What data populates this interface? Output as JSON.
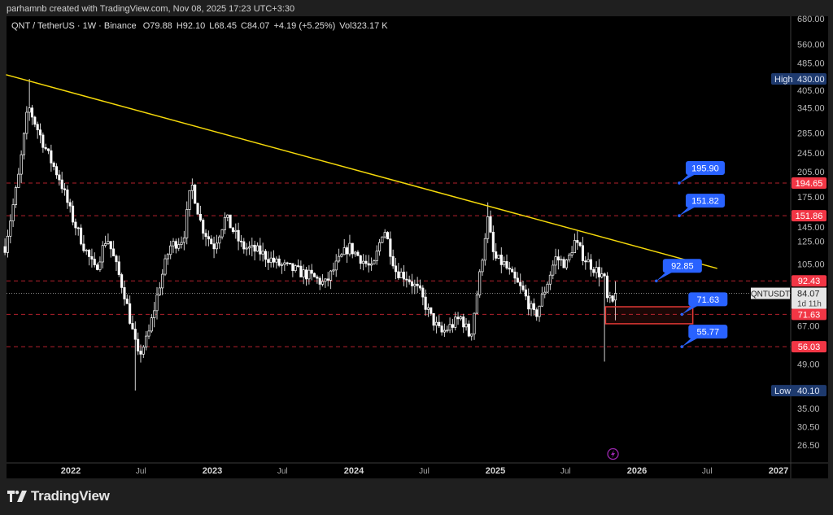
{
  "attribution": "parhamnb created with TradingView.com, Nov 08, 2025 17:23 UTC+3:30",
  "legend": {
    "symbol": "QNT / TetherUS · 1W · Binance",
    "open": "O79.88",
    "high": "H92.10",
    "low": "L68.45",
    "close": "C84.07",
    "change": "+4.19 (+5.25%)",
    "volume": "Vol323.17 K"
  },
  "footer": {
    "brand": "TradingView"
  },
  "colors": {
    "background": "#000000",
    "frame": "#1f1f1f",
    "candle": "#ffffff",
    "trendline": "#f5d90a",
    "level_line": "#b2202c",
    "level_tag": "#f23645",
    "callout": "#2962ff",
    "high_low_tag": "#1e3a6e",
    "zone_border": "#e53935",
    "event_icon": "#9c27b0"
  },
  "chart_data": {
    "type": "candlestick",
    "symbol": "QNTUSDT",
    "interval": "1W",
    "y_scale": "log",
    "grid": false,
    "price_ticks": [
      "680.00",
      "560.00",
      "485.00",
      "405.00",
      "345.00",
      "285.00",
      "245.00",
      "205.00",
      "175.00",
      "145.00",
      "125.00",
      "105.00",
      "67.00",
      "49.00",
      "35.00",
      "30.50",
      "26.50"
    ],
    "x_ticks": [
      {
        "label": "2022",
        "date": "2022-01-01"
      },
      {
        "label": "Jul",
        "date": "2022-07-01"
      },
      {
        "label": "2023",
        "date": "2023-01-01"
      },
      {
        "label": "Jul",
        "date": "2023-07-01"
      },
      {
        "label": "2024",
        "date": "2024-01-01"
      },
      {
        "label": "Jul",
        "date": "2024-07-01"
      },
      {
        "label": "2025",
        "date": "2025-01-01"
      },
      {
        "label": "Jul",
        "date": "2025-07-01"
      },
      {
        "label": "2026",
        "date": "2026-01-01"
      },
      {
        "label": "Jul",
        "date": "2026-07-01"
      },
      {
        "label": "2027",
        "date": "2027-01-01"
      }
    ],
    "first_candle": "2021-07-12",
    "price_path": [
      [
        "2021-07-12",
        120
      ],
      [
        "2021-08-15",
        200
      ],
      [
        "2021-09-10",
        350
      ],
      [
        "2021-10-01",
        300
      ],
      [
        "2021-11-01",
        240
      ],
      [
        "2021-12-01",
        200
      ],
      [
        "2022-01-01",
        150
      ],
      [
        "2022-02-01",
        120
      ],
      [
        "2022-03-01",
        100
      ],
      [
        "2022-04-01",
        130
      ],
      [
        "2022-05-15",
        85
      ],
      [
        "2022-06-20",
        52
      ],
      [
        "2022-07-15",
        60
      ],
      [
        "2022-08-15",
        90
      ],
      [
        "2022-09-10",
        120
      ],
      [
        "2022-10-15",
        128
      ],
      [
        "2022-11-05",
        195
      ],
      [
        "2022-12-01",
        140
      ],
      [
        "2023-01-01",
        120
      ],
      [
        "2023-02-01",
        150
      ],
      [
        "2023-03-15",
        120
      ],
      [
        "2023-05-01",
        115
      ],
      [
        "2023-06-15",
        105
      ],
      [
        "2023-08-01",
        100
      ],
      [
        "2023-09-15",
        95
      ],
      [
        "2023-10-15",
        90
      ],
      [
        "2023-11-15",
        105
      ],
      [
        "2023-12-15",
        120
      ],
      [
        "2024-01-15",
        110
      ],
      [
        "2024-02-15",
        100
      ],
      [
        "2024-03-15",
        140
      ],
      [
        "2024-04-15",
        100
      ],
      [
        "2024-05-15",
        95
      ],
      [
        "2024-06-15",
        85
      ],
      [
        "2024-07-15",
        70
      ],
      [
        "2024-08-10",
        62
      ],
      [
        "2024-09-01",
        65
      ],
      [
        "2024-10-01",
        70
      ],
      [
        "2024-10-25",
        60
      ],
      [
        "2024-11-20",
        100
      ],
      [
        "2024-12-08",
        150
      ],
      [
        "2024-12-25",
        110
      ],
      [
        "2025-01-20",
        105
      ],
      [
        "2025-02-10",
        95
      ],
      [
        "2025-03-10",
        85
      ],
      [
        "2025-04-10",
        70
      ],
      [
        "2025-05-10",
        90
      ],
      [
        "2025-06-01",
        110
      ],
      [
        "2025-07-01",
        105
      ],
      [
        "2025-07-20",
        125
      ],
      [
        "2025-08-15",
        110
      ],
      [
        "2025-09-15",
        100
      ],
      [
        "2025-10-05",
        95
      ],
      [
        "2025-10-12",
        80
      ],
      [
        "2025-10-27",
        78
      ]
    ],
    "extremes": [
      {
        "date": "2021-09-13",
        "high": 430.0
      },
      {
        "date": "2022-06-13",
        "low": 40.1
      },
      {
        "date": "2024-12-09",
        "high": 168
      },
      {
        "date": "2025-07-28",
        "high": 135
      },
      {
        "date": "2025-10-06",
        "low": 50
      }
    ],
    "last_candle": {
      "date": "2025-11-03",
      "open": 79.88,
      "high": 92.1,
      "low": 68.45,
      "close": 84.07
    },
    "high_marker": {
      "label": "High",
      "value": "430.00"
    },
    "low_marker": {
      "label": "Low",
      "value": "40.10"
    },
    "current_price": {
      "symbol": "QNTUSDT",
      "value": "84.07",
      "countdown": "1d 11h",
      "price": 84.07
    },
    "horizontal_levels": [
      {
        "value": 194.65,
        "label": "194.65"
      },
      {
        "value": 151.86,
        "label": "151.86"
      },
      {
        "value": 92.43,
        "label": "92.43"
      },
      {
        "value": 71.63,
        "label": "71.63"
      },
      {
        "value": 56.03,
        "label": "56.03"
      }
    ],
    "callouts": [
      {
        "label": "195.90",
        "anchor_date": "2026-04-20",
        "anchor_price": 194.65
      },
      {
        "label": "151.82",
        "anchor_date": "2026-04-20",
        "anchor_price": 151.86
      },
      {
        "label": "92.85",
        "anchor_date": "2026-02-20",
        "anchor_price": 92.43
      },
      {
        "label": "71.63",
        "anchor_date": "2026-04-27",
        "anchor_price": 71.63
      },
      {
        "label": "55.77",
        "anchor_date": "2026-04-27",
        "anchor_price": 56.03
      }
    ],
    "trendline": {
      "start": [
        "2021-07-18",
        444
      ],
      "end": [
        "2026-07-27",
        101.6
      ]
    },
    "zone": {
      "start": "2025-10-12",
      "end": "2026-05-25",
      "top": 75.9,
      "bottom": 66.7
    },
    "event_marker": {
      "date": "2025-10-27",
      "icon": "lightning-icon"
    }
  }
}
